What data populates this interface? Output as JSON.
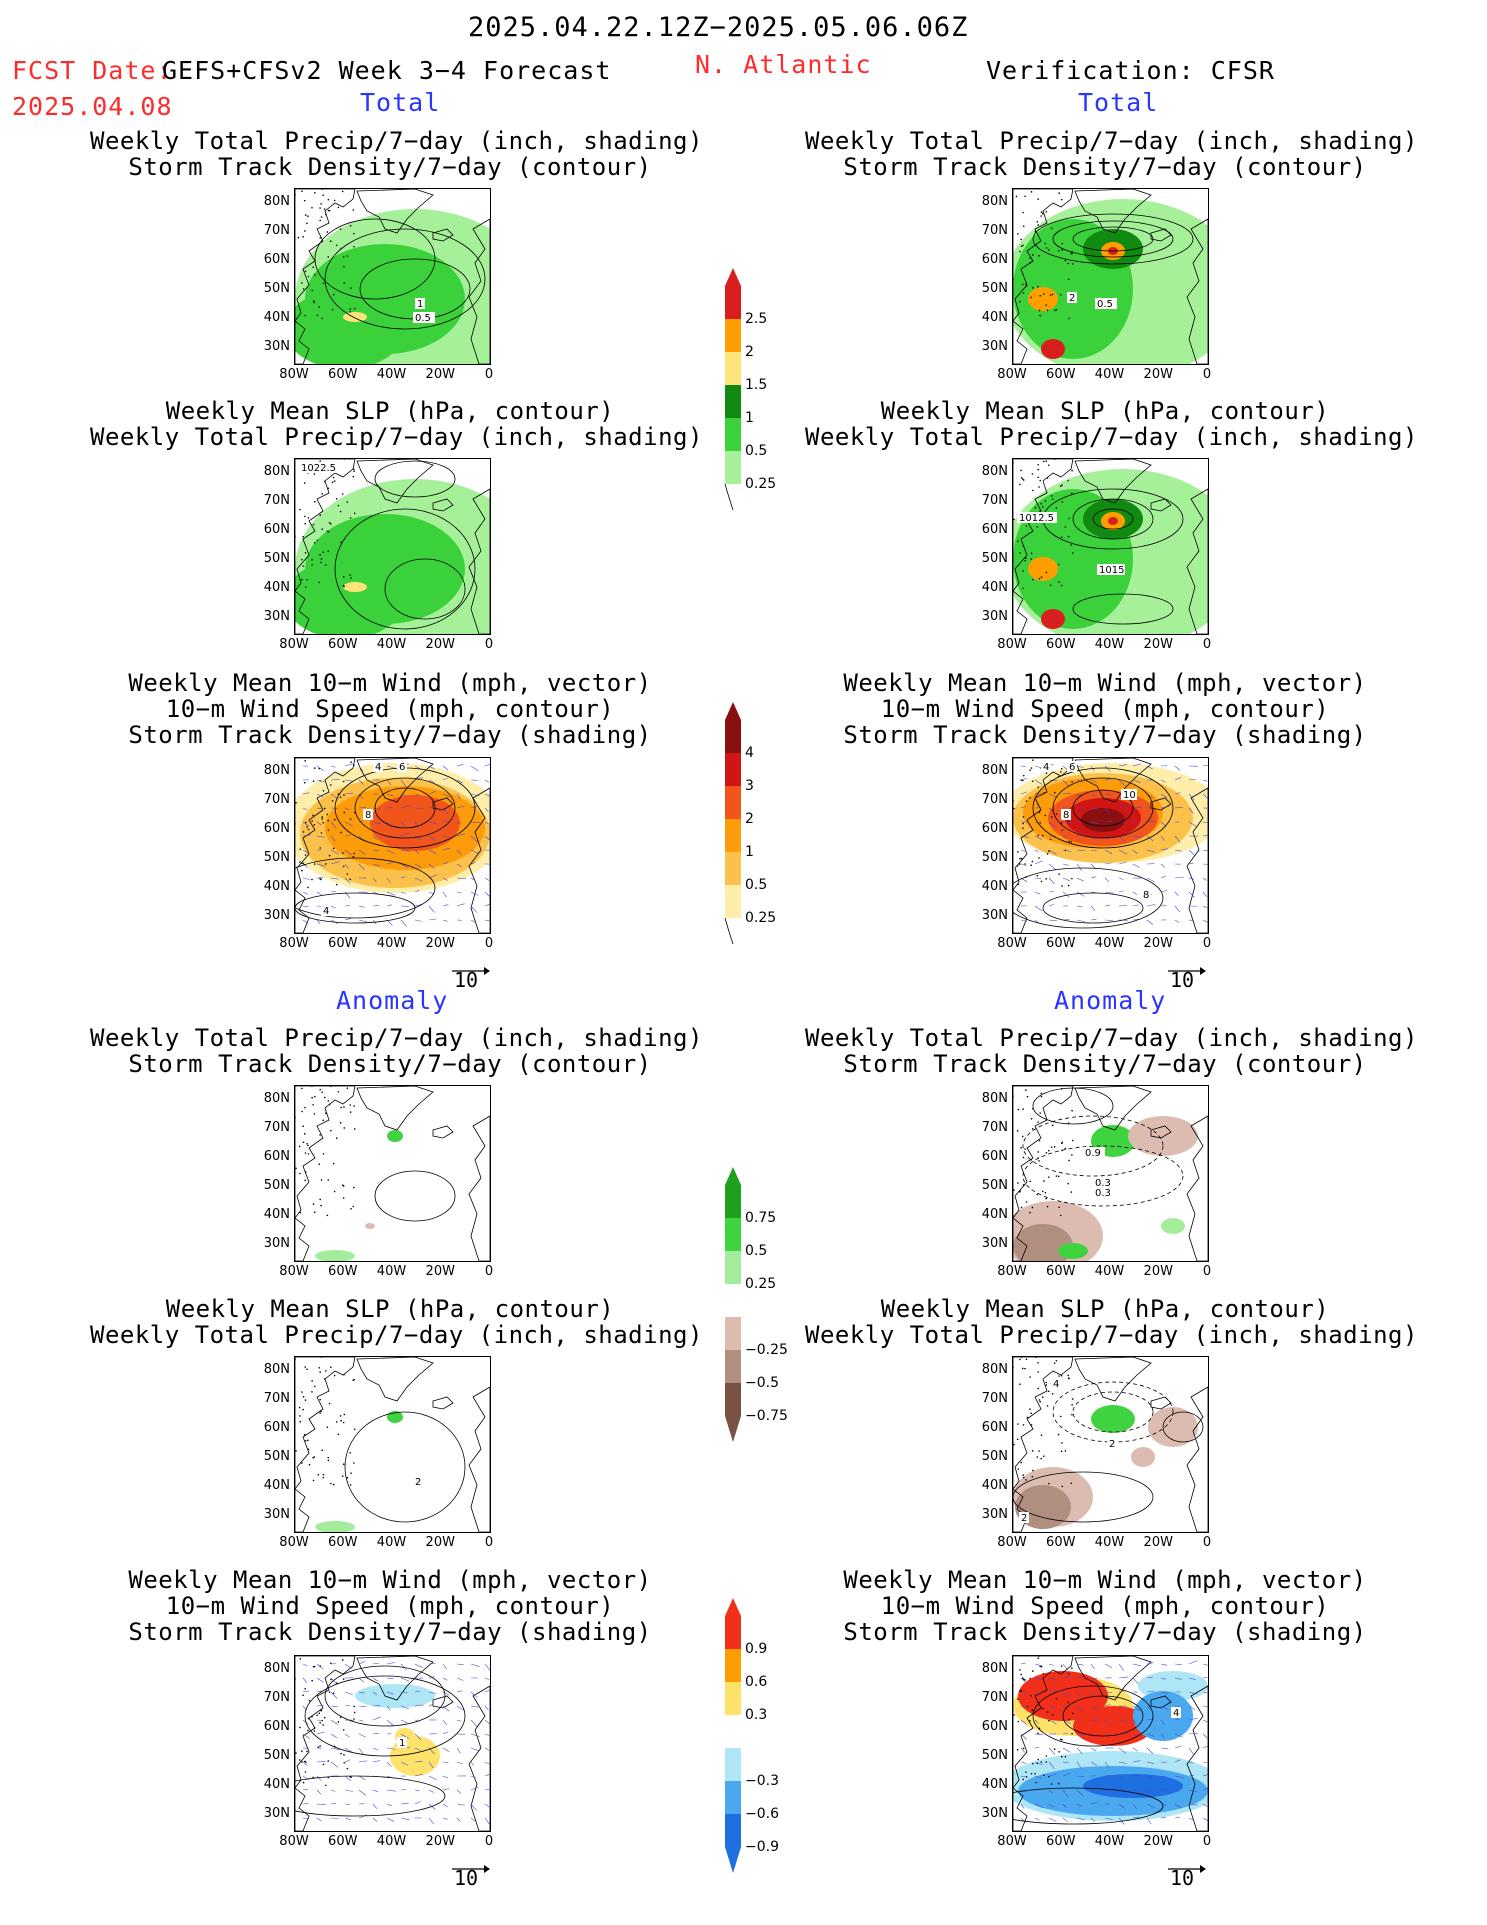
{
  "header": {
    "title": "2025.04.22.12Z−2025.05.06.06Z",
    "fcst_date_label": "FCST Date:",
    "fcst_model": "GEFS+CFSv2 Week 3−4 Forecast",
    "region": "N. Atlantic",
    "fcst_date": "2025.04.08",
    "verification": "Verification: CFSR"
  },
  "section_labels": {
    "total": "Total",
    "anomaly": "Anomaly"
  },
  "panel_titles": {
    "precip_storm": [
      "Weekly Total Precip/7−day (inch, shading)",
      "Storm Track Density/7−day (contour)"
    ],
    "slp_precip": [
      "Weekly Mean SLP (hPa, contour)",
      "Weekly Total Precip/7−day (inch, shading)"
    ],
    "wind_storm": [
      "Weekly Mean 10−m Wind (mph, vector)",
      "10−m Wind Speed (mph, contour)",
      "Storm Track Density/7−day (shading)"
    ]
  },
  "axes": {
    "lat_ticks": [
      "80N",
      "70N",
      "60N",
      "50N",
      "40N",
      "30N"
    ],
    "lon_ticks": [
      "80W",
      "60W",
      "40W",
      "20W",
      "0"
    ]
  },
  "vector_reference": "10",
  "contour_labels": {
    "fc_precip_storm": [
      "1",
      "0.5"
    ],
    "vf_precip_storm": [
      "2",
      "0.5"
    ],
    "fc_slp": [
      "1022.5"
    ],
    "vf_slp": [
      "1012.5",
      "1015"
    ],
    "fc_wind": [
      "4",
      "6",
      "8",
      "4"
    ],
    "vf_wind": [
      "4",
      "6",
      "8",
      "10",
      "8"
    ],
    "vf_anom_precip": [
      "0.9",
      "0.3",
      "0.3"
    ],
    "fc_anom_slp": [
      "2"
    ],
    "vf_anom_slp": [
      "4",
      "2",
      "2"
    ],
    "fc_anom_wind": [
      "1"
    ],
    "vf_anom_wind": [
      "4"
    ]
  },
  "colorbars": {
    "precip_total": {
      "labels": [
        "2.5",
        "2",
        "1.5",
        "1",
        "0.5",
        "0.25"
      ],
      "colors": [
        "#d81e1e",
        "#ff9e00",
        "#ffe47a",
        "#118a11",
        "#3bd13b",
        "#a6f09a"
      ]
    },
    "storm_total": {
      "labels": [
        "4",
        "3",
        "2",
        "1",
        "0.5",
        "0.25"
      ],
      "colors": [
        "#8a0f0f",
        "#d11414",
        "#f2551b",
        "#fd9c0b",
        "#fbc14a",
        "#ffeeaa"
      ]
    },
    "precip_anom": {
      "labels": [
        "0.75",
        "0.5",
        "0.25",
        "−0.25",
        "−0.5",
        "−0.75"
      ],
      "colors": [
        "#1fa01f",
        "#3fd43f",
        "#a3ec9c",
        "#ffffff",
        "#dcbcb0",
        "#b08f80",
        "#7a5243"
      ]
    },
    "storm_anom": {
      "labels": [
        "0.9",
        "0.6",
        "0.3",
        "−0.3",
        "−0.6",
        "−0.9"
      ],
      "colors": [
        "#f2301a",
        "#ff9d00",
        "#ffe26a",
        "#ffffff",
        "#aee6f6",
        "#4aa8ef",
        "#1f6fe0"
      ]
    }
  }
}
